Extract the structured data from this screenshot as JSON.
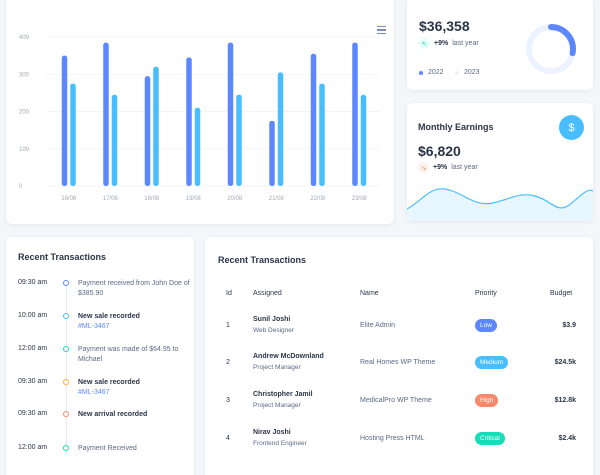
{
  "bar_chart": {
    "y_ticks": [
      "400",
      "300",
      "200",
      "100",
      "0"
    ],
    "ylim": [
      0,
      400
    ],
    "colors": {
      "series1": "#5d87ff",
      "series2": "#49beff"
    },
    "chart_data": {
      "type": "bar",
      "categories": [
        "16/08",
        "17/08",
        "18/08",
        "19/08",
        "20/08",
        "21/08",
        "22/08",
        "23/08"
      ],
      "series": [
        {
          "values": [
            350,
            385,
            295,
            345,
            385,
            175,
            355,
            385
          ]
        },
        {
          "values": [
            275,
            245,
            320,
            210,
            245,
            305,
            275,
            245
          ]
        }
      ],
      "ylim": [
        0,
        400
      ],
      "grid": true
    }
  },
  "yearly": {
    "value": "$36,358",
    "trend_icon": "arrow-up-left",
    "trend_value": "+9%",
    "trend_label": "last year",
    "legend": [
      {
        "label": "2022",
        "color": "#5d87ff"
      },
      {
        "label": "2023",
        "color": "#ecf2ff"
      }
    ],
    "donut": {
      "primary_fraction": 0.28,
      "primary_color": "#5d87ff",
      "track_color": "#ecf2ff"
    }
  },
  "monthly": {
    "title": "Monthly Earnings",
    "icon": "dollar-icon",
    "icon_symbol": "$",
    "value": "$6,820",
    "trend_icon": "arrow-down-right",
    "trend_value": "+9%",
    "trend_label": "last year",
    "sparkline_color": "#49beff"
  },
  "timeline": {
    "title": "Recent Transactions",
    "items": [
      {
        "time": "09:30 am",
        "text": "Payment received from John Doe of $385.90",
        "ref": "",
        "bold": false,
        "color": "#5d87ff"
      },
      {
        "time": "10:00 am",
        "text": "New sale recorded",
        "ref": "#ML-3467",
        "bold": true,
        "color": "#49beff"
      },
      {
        "time": "12:00 am",
        "text": "Payment was made of $64.95 to Michael",
        "ref": "",
        "bold": false,
        "color": "#13deb9"
      },
      {
        "time": "09:30 am",
        "text": "New sale recorded",
        "ref": "#ML-3467",
        "bold": true,
        "color": "#ffae1f"
      },
      {
        "time": "09:30 am",
        "text": "New arrival recorded",
        "ref": "",
        "bold": true,
        "color": "#fa896b"
      },
      {
        "time": "12:00 am",
        "text": "Payment Received",
        "ref": "",
        "bold": false,
        "color": "#13deb9"
      }
    ]
  },
  "table": {
    "title": "Recent Transactions",
    "headers": {
      "id": "Id",
      "assigned": "Assigned",
      "name": "Name",
      "priority": "Priority",
      "budget": "Budget"
    },
    "rows": [
      {
        "id": "1",
        "assigned": "Sunil Joshi",
        "role": "Web Designer",
        "project": "Elite Admin",
        "priority": "Low",
        "priority_color": "#5d87ff",
        "budget": "$3.9"
      },
      {
        "id": "2",
        "assigned": "Andrew McDownland",
        "role": "Project Manager",
        "project": "Real Homes WP Theme",
        "priority": "Medium",
        "priority_color": "#49beff",
        "budget": "$24.5k"
      },
      {
        "id": "3",
        "assigned": "Christopher Jamil",
        "role": "Project Manager",
        "project": "MedicalPro WP Theme",
        "priority": "High",
        "priority_color": "#fa896b",
        "budget": "$12.8k"
      },
      {
        "id": "4",
        "assigned": "Nirav Joshi",
        "role": "Frontend Engineer",
        "project": "Hosting Press HTML",
        "priority": "Critical",
        "priority_color": "#13deb9",
        "budget": "$2.4k"
      }
    ]
  }
}
